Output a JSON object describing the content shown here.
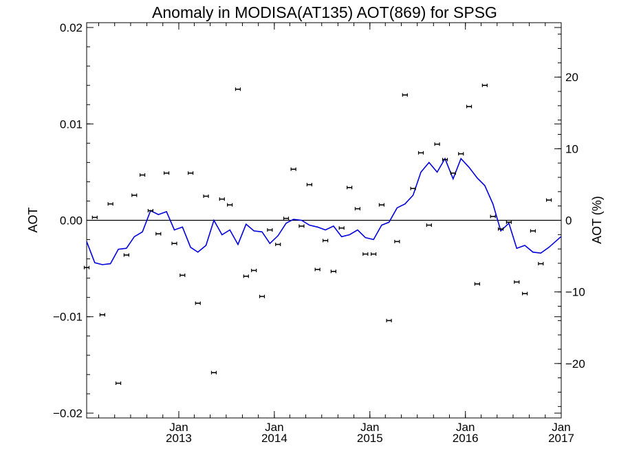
{
  "chart_data": {
    "type": "scatter",
    "title": "Anomaly in MODISA(AT135) AOT(869) for SPSG",
    "ylabel": "AOT",
    "y2label": "AOT (%)",
    "xlabel": "",
    "ylim": [
      -0.0205,
      0.0205
    ],
    "y2lim": [
      -27.6,
      27.6
    ],
    "xlim": [
      "2012-01-15",
      "2017-01-01"
    ],
    "grid": false,
    "zero_line": true,
    "yticks": [
      {
        "value": 0.02,
        "label": "0.02"
      },
      {
        "value": 0.01,
        "label": "0.01"
      },
      {
        "value": 0.0,
        "label": "0.00"
      },
      {
        "value": -0.01,
        "label": "−0.01"
      },
      {
        "value": -0.02,
        "label": "−0.02"
      }
    ],
    "y2ticks": [
      {
        "value": 20,
        "label": "20"
      },
      {
        "value": 10,
        "label": "10"
      },
      {
        "value": 0,
        "label": "0"
      },
      {
        "value": -10,
        "label": "−10"
      },
      {
        "value": -20,
        "label": "−20"
      }
    ],
    "xticks": [
      {
        "date": "2013-01-01",
        "label1": "Jan",
        "label2": "2013"
      },
      {
        "date": "2014-01-01",
        "label1": "Jan",
        "label2": "2014"
      },
      {
        "date": "2015-01-01",
        "label1": "Jan",
        "label2": "2015"
      },
      {
        "date": "2016-01-01",
        "label1": "Jan",
        "label2": "2016"
      },
      {
        "date": "2017-01-01",
        "label1": "Jan",
        "label2": "2017"
      }
    ],
    "series": [
      {
        "kind": "points_with_errorbars",
        "axis": "left",
        "color": "#000000",
        "points": [
          {
            "x": "2012-01-15",
            "y": -0.0049
          },
          {
            "x": "2012-02-15",
            "y": 0.0003
          },
          {
            "x": "2012-03-15",
            "y": -0.0098
          },
          {
            "x": "2012-04-15",
            "y": 0.0017
          },
          {
            "x": "2012-05-15",
            "y": -0.0169
          },
          {
            "x": "2012-06-15",
            "y": -0.0036
          },
          {
            "x": "2012-07-15",
            "y": 0.0026
          },
          {
            "x": "2012-08-15",
            "y": 0.0047
          },
          {
            "x": "2012-09-15",
            "y": 0.001
          },
          {
            "x": "2012-10-15",
            "y": -0.0014
          },
          {
            "x": "2012-11-15",
            "y": 0.0049
          },
          {
            "x": "2012-12-15",
            "y": -0.0024
          },
          {
            "x": "2013-01-15",
            "y": -0.0057
          },
          {
            "x": "2013-02-15",
            "y": 0.0049
          },
          {
            "x": "2013-03-15",
            "y": -0.0086
          },
          {
            "x": "2013-04-15",
            "y": 0.0025
          },
          {
            "x": "2013-05-15",
            "y": -0.0158
          },
          {
            "x": "2013-06-15",
            "y": 0.0022
          },
          {
            "x": "2013-07-15",
            "y": 0.0016
          },
          {
            "x": "2013-08-15",
            "y": 0.0136
          },
          {
            "x": "2013-09-15",
            "y": -0.0058
          },
          {
            "x": "2013-10-15",
            "y": -0.0052
          },
          {
            "x": "2013-11-15",
            "y": -0.0079
          },
          {
            "x": "2013-12-15",
            "y": -0.001
          },
          {
            "x": "2014-01-15",
            "y": -0.0025
          },
          {
            "x": "2014-02-15",
            "y": 0.0002
          },
          {
            "x": "2014-03-15",
            "y": 0.0053
          },
          {
            "x": "2014-04-15",
            "y": -0.0006
          },
          {
            "x": "2014-05-15",
            "y": 0.0037
          },
          {
            "x": "2014-06-15",
            "y": -0.0051
          },
          {
            "x": "2014-07-15",
            "y": -0.0021
          },
          {
            "x": "2014-08-15",
            "y": -0.0053
          },
          {
            "x": "2014-09-15",
            "y": -0.0008
          },
          {
            "x": "2014-10-15",
            "y": 0.0034
          },
          {
            "x": "2014-11-15",
            "y": 0.0012
          },
          {
            "x": "2014-12-15",
            "y": -0.0035
          },
          {
            "x": "2015-01-15",
            "y": -0.0035
          },
          {
            "x": "2015-02-15",
            "y": 0.0016
          },
          {
            "x": "2015-03-15",
            "y": -0.0104
          },
          {
            "x": "2015-04-15",
            "y": -0.0022
          },
          {
            "x": "2015-05-15",
            "y": 0.013
          },
          {
            "x": "2015-06-15",
            "y": 0.0033
          },
          {
            "x": "2015-07-15",
            "y": 0.007
          },
          {
            "x": "2015-08-15",
            "y": -0.0005
          },
          {
            "x": "2015-09-15",
            "y": 0.0079
          },
          {
            "x": "2015-10-15",
            "y": 0.0063
          },
          {
            "x": "2015-11-15",
            "y": 0.0049
          },
          {
            "x": "2015-12-15",
            "y": 0.0069
          },
          {
            "x": "2016-01-15",
            "y": 0.0118
          },
          {
            "x": "2016-02-15",
            "y": -0.0066
          },
          {
            "x": "2016-03-15",
            "y": 0.014
          },
          {
            "x": "2016-04-15",
            "y": 0.0004
          },
          {
            "x": "2016-05-15",
            "y": -0.0009
          },
          {
            "x": "2016-06-15",
            "y": -0.0002
          },
          {
            "x": "2016-07-15",
            "y": -0.0064
          },
          {
            "x": "2016-08-15",
            "y": -0.0076
          },
          {
            "x": "2016-09-15",
            "y": -0.0011
          },
          {
            "x": "2016-10-15",
            "y": -0.0045
          },
          {
            "x": "2016-11-15",
            "y": 0.0021
          }
        ]
      },
      {
        "kind": "line",
        "axis": "left",
        "color": "#0000dd",
        "points": [
          {
            "x": "2012-01-15",
            "y": -0.0022
          },
          {
            "x": "2012-02-15",
            "y": -0.0044
          },
          {
            "x": "2012-03-15",
            "y": -0.0046
          },
          {
            "x": "2012-04-15",
            "y": -0.0045
          },
          {
            "x": "2012-05-15",
            "y": -0.003
          },
          {
            "x": "2012-06-15",
            "y": -0.0029
          },
          {
            "x": "2012-07-15",
            "y": -0.0017
          },
          {
            "x": "2012-08-15",
            "y": -0.0012
          },
          {
            "x": "2012-09-15",
            "y": 0.001
          },
          {
            "x": "2012-10-15",
            "y": 0.0006
          },
          {
            "x": "2012-11-15",
            "y": 0.0009
          },
          {
            "x": "2012-12-15",
            "y": -0.001
          },
          {
            "x": "2013-01-15",
            "y": -0.0007
          },
          {
            "x": "2013-02-15",
            "y": -0.0028
          },
          {
            "x": "2013-03-15",
            "y": -0.0033
          },
          {
            "x": "2013-04-15",
            "y": -0.0026
          },
          {
            "x": "2013-05-15",
            "y": 0.0
          },
          {
            "x": "2013-06-15",
            "y": -0.0015
          },
          {
            "x": "2013-07-15",
            "y": -0.001
          },
          {
            "x": "2013-08-15",
            "y": -0.0025
          },
          {
            "x": "2013-09-15",
            "y": -0.0004
          },
          {
            "x": "2013-10-15",
            "y": -0.0011
          },
          {
            "x": "2013-11-15",
            "y": -0.0012
          },
          {
            "x": "2013-12-15",
            "y": -0.0024
          },
          {
            "x": "2014-01-15",
            "y": -0.0016
          },
          {
            "x": "2014-02-15",
            "y": -0.0003
          },
          {
            "x": "2014-03-15",
            "y": 0.0001
          },
          {
            "x": "2014-04-15",
            "y": 0.0
          },
          {
            "x": "2014-05-15",
            "y": -0.0005
          },
          {
            "x": "2014-06-15",
            "y": -0.0007
          },
          {
            "x": "2014-07-15",
            "y": -0.001
          },
          {
            "x": "2014-08-15",
            "y": -0.0006
          },
          {
            "x": "2014-09-15",
            "y": -0.0017
          },
          {
            "x": "2014-10-15",
            "y": -0.0015
          },
          {
            "x": "2014-11-15",
            "y": -0.001
          },
          {
            "x": "2014-12-15",
            "y": -0.0018
          },
          {
            "x": "2015-01-15",
            "y": -0.002
          },
          {
            "x": "2015-02-15",
            "y": -0.0005
          },
          {
            "x": "2015-03-15",
            "y": -0.0002
          },
          {
            "x": "2015-04-15",
            "y": 0.0013
          },
          {
            "x": "2015-05-15",
            "y": 0.0017
          },
          {
            "x": "2015-06-15",
            "y": 0.0026
          },
          {
            "x": "2015-07-15",
            "y": 0.005
          },
          {
            "x": "2015-08-15",
            "y": 0.006
          },
          {
            "x": "2015-09-15",
            "y": 0.005
          },
          {
            "x": "2015-10-15",
            "y": 0.0064
          },
          {
            "x": "2015-11-15",
            "y": 0.0043
          },
          {
            "x": "2015-12-15",
            "y": 0.0064
          },
          {
            "x": "2016-01-15",
            "y": 0.0055
          },
          {
            "x": "2016-02-15",
            "y": 0.0044
          },
          {
            "x": "2016-03-15",
            "y": 0.0036
          },
          {
            "x": "2016-04-15",
            "y": 0.0017
          },
          {
            "x": "2016-05-15",
            "y": -0.0011
          },
          {
            "x": "2016-06-15",
            "y": -0.0003
          },
          {
            "x": "2016-07-15",
            "y": -0.0029
          },
          {
            "x": "2016-08-15",
            "y": -0.0026
          },
          {
            "x": "2016-09-15",
            "y": -0.0033
          },
          {
            "x": "2016-10-15",
            "y": -0.0034
          },
          {
            "x": "2016-11-15",
            "y": -0.0028
          },
          {
            "x": "2016-12-31",
            "y": -0.0017
          }
        ]
      }
    ]
  }
}
